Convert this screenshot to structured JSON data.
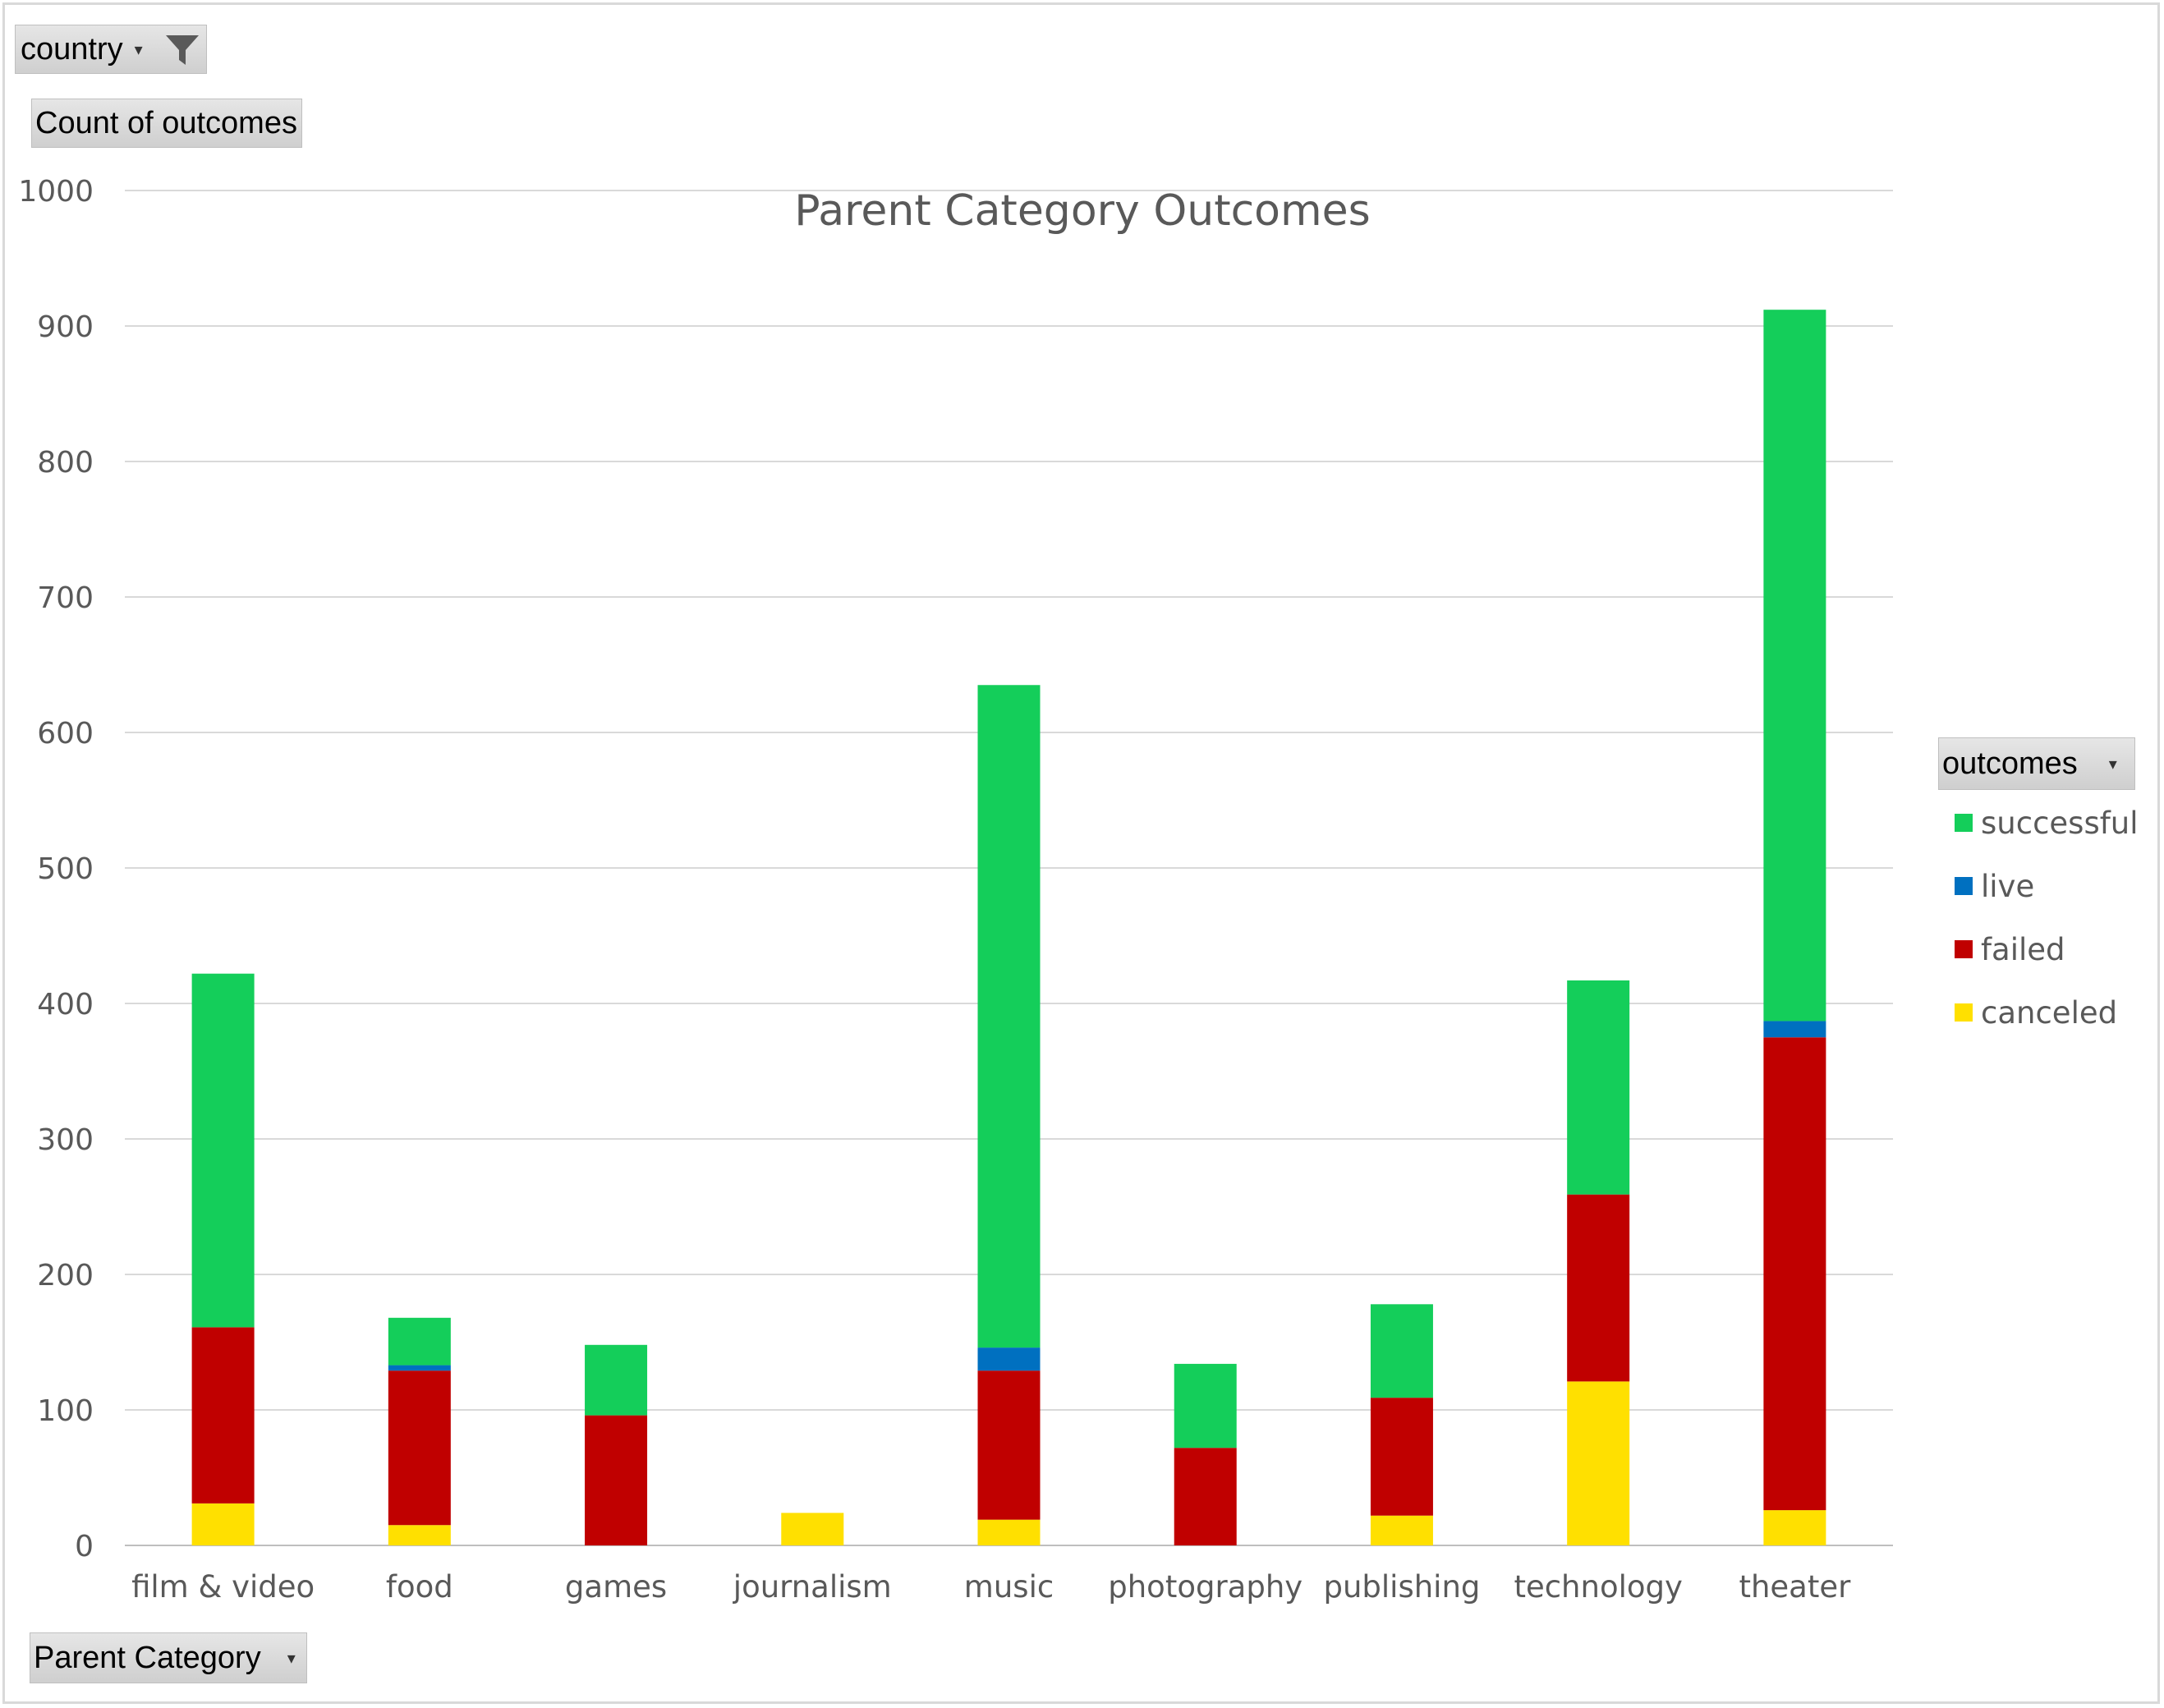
{
  "pivot": {
    "filter_label": "country",
    "values_label": "Count of outcomes",
    "axis_label": "Parent Category",
    "legend_label": "outcomes"
  },
  "icons": {
    "filter": "filter-funnel-icon",
    "dropdown": "chevron-down-icon"
  },
  "chart_data": {
    "type": "bar",
    "stacked": true,
    "title": "Parent Category Outcomes",
    "xlabel": "",
    "ylabel": "",
    "ylim": [
      0,
      1000
    ],
    "yticks": [
      0,
      100,
      200,
      300,
      400,
      500,
      600,
      700,
      800,
      900,
      1000
    ],
    "grid": true,
    "legend_position": "right",
    "categories": [
      "film & video",
      "food",
      "games",
      "journalism",
      "music",
      "photography",
      "publishing",
      "technology",
      "theater"
    ],
    "series": [
      {
        "name": "canceled",
        "color": "#FFE000",
        "values": [
          31,
          15,
          0,
          24,
          19,
          0,
          22,
          121,
          26
        ]
      },
      {
        "name": "failed",
        "color": "#C00000",
        "values": [
          130,
          114,
          96,
          0,
          110,
          72,
          87,
          138,
          349
        ]
      },
      {
        "name": "live",
        "color": "#0070C0",
        "values": [
          0,
          4,
          0,
          0,
          17,
          0,
          0,
          0,
          12
        ]
      },
      {
        "name": "successful",
        "color": "#14CE5A",
        "values": [
          261,
          35,
          52,
          0,
          489,
          62,
          69,
          158,
          525
        ]
      }
    ],
    "legend_order": [
      "successful",
      "live",
      "failed",
      "canceled"
    ]
  }
}
